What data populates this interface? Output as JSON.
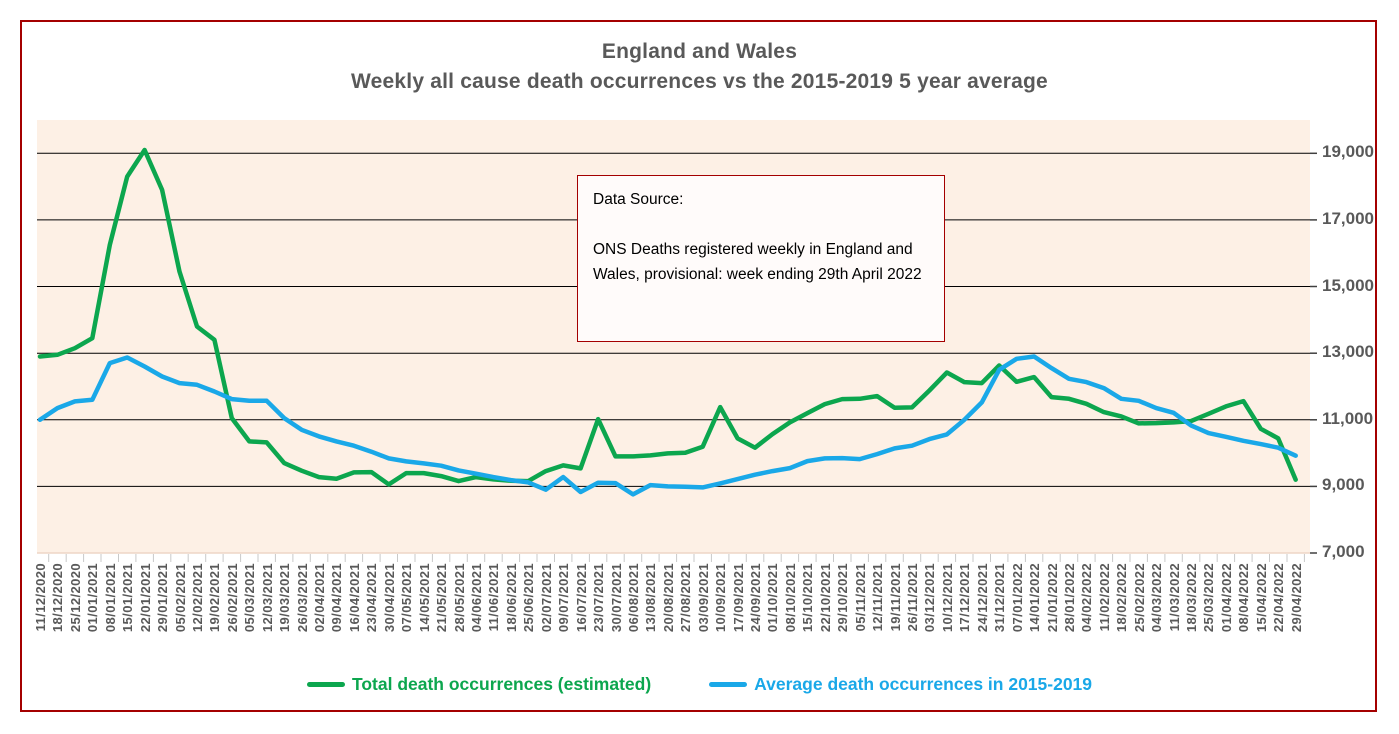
{
  "frame": {
    "border_color": "#a40000"
  },
  "title": {
    "line1": "England and Wales",
    "line2": "Weekly all cause death occurrences vs the 2015-2019 5 year average",
    "color": "#595959"
  },
  "annotation_box": {
    "heading": "Data Source:",
    "body": "ONS Deaths registered weekly in England and Wales, provisional: week ending 29th April 2022",
    "border_color": "#a40000"
  },
  "chart_data": {
    "type": "line",
    "title": "England and Wales — Weekly all cause death occurrences vs the 2015-2019 5 year average",
    "xlabel": "",
    "ylabel": "",
    "ylim": [
      7000,
      20000
    ],
    "yticks": [
      7000,
      9000,
      11000,
      13000,
      15000,
      17000,
      19000
    ],
    "ytick_labels": [
      "7,000",
      "9,000",
      "11,000",
      "13,000",
      "15,000",
      "17,000",
      "19,000"
    ],
    "gridlines": [
      9000,
      11000,
      13000,
      15000,
      17000,
      19000
    ],
    "grid": true,
    "legend_position": "bottom",
    "plot_bg": "#fdf0e5",
    "x": [
      "11/12/2020",
      "18/12/2020",
      "25/12/2020",
      "01/01/2021",
      "08/01/2021",
      "15/01/2021",
      "22/01/2021",
      "29/01/2021",
      "05/02/2021",
      "12/02/2021",
      "19/02/2021",
      "26/02/2021",
      "05/03/2021",
      "12/03/2021",
      "19/03/2021",
      "26/03/2021",
      "02/04/2021",
      "09/04/2021",
      "16/04/2021",
      "23/04/2021",
      "30/04/2021",
      "07/05/2021",
      "14/05/2021",
      "21/05/2021",
      "28/05/2021",
      "04/06/2021",
      "11/06/2021",
      "18/06/2021",
      "25/06/2021",
      "02/07/2021",
      "09/07/2021",
      "16/07/2021",
      "23/07/2021",
      "30/07/2021",
      "06/08/2021",
      "13/08/2021",
      "20/08/2021",
      "27/08/2021",
      "03/09/2021",
      "10/09/2021",
      "17/09/2021",
      "24/09/2021",
      "01/10/2021",
      "08/10/2021",
      "15/10/2021",
      "22/10/2021",
      "29/10/2021",
      "05/11/2021",
      "12/11/2021",
      "19/11/2021",
      "26/11/2021",
      "03/12/2021",
      "10/12/2021",
      "17/12/2021",
      "24/12/2021",
      "31/12/2021",
      "07/01/2022",
      "14/01/2022",
      "21/01/2022",
      "28/01/2022",
      "04/02/2022",
      "11/02/2022",
      "18/02/2022",
      "25/02/2022",
      "04/03/2022",
      "11/03/2022",
      "18/03/2022",
      "25/03/2022",
      "01/04/2022",
      "08/04/2022",
      "15/04/2022",
      "22/04/2022",
      "29/04/2022"
    ],
    "series": [
      {
        "name": "Total death occurrences (estimated)",
        "color": "#0ca64e",
        "values": [
          12900,
          12950,
          13150,
          13450,
          16250,
          18300,
          19100,
          17900,
          15450,
          13800,
          13400,
          11050,
          10350,
          10320,
          9700,
          9470,
          9280,
          9230,
          9420,
          9430,
          9060,
          9400,
          9400,
          9310,
          9160,
          9280,
          9210,
          9170,
          9160,
          9460,
          9630,
          9540,
          11020,
          9900,
          9900,
          9930,
          9990,
          10010,
          10190,
          11380,
          10440,
          10160,
          10570,
          10920,
          11200,
          11470,
          11620,
          11630,
          11710,
          11360,
          11370,
          11880,
          12420,
          12130,
          12100,
          12630,
          12140,
          12280,
          11680,
          11630,
          11480,
          11230,
          11100,
          10890,
          10900,
          10920,
          10960,
          11180,
          11400,
          11560,
          10730,
          10440,
          9200
        ]
      },
      {
        "name": "Average death occurrences in 2015-2019",
        "color": "#1aa8e8",
        "values": [
          11000,
          11350,
          11550,
          11600,
          12700,
          12870,
          12600,
          12300,
          12100,
          12050,
          11850,
          11620,
          11570,
          11570,
          11050,
          10700,
          10500,
          10350,
          10220,
          10040,
          9840,
          9750,
          9690,
          9620,
          9480,
          9380,
          9280,
          9190,
          9120,
          8900,
          9280,
          8830,
          9110,
          9100,
          8760,
          9040,
          9000,
          8990,
          8970,
          9090,
          9220,
          9350,
          9460,
          9550,
          9760,
          9840,
          9850,
          9820,
          9970,
          10140,
          10220,
          10420,
          10560,
          11000,
          11520,
          12500,
          12830,
          12900,
          12550,
          12230,
          12130,
          11950,
          11630,
          11570,
          11350,
          11210,
          10830,
          10600,
          10490,
          10370,
          10270,
          10160,
          9920
        ]
      }
    ]
  }
}
